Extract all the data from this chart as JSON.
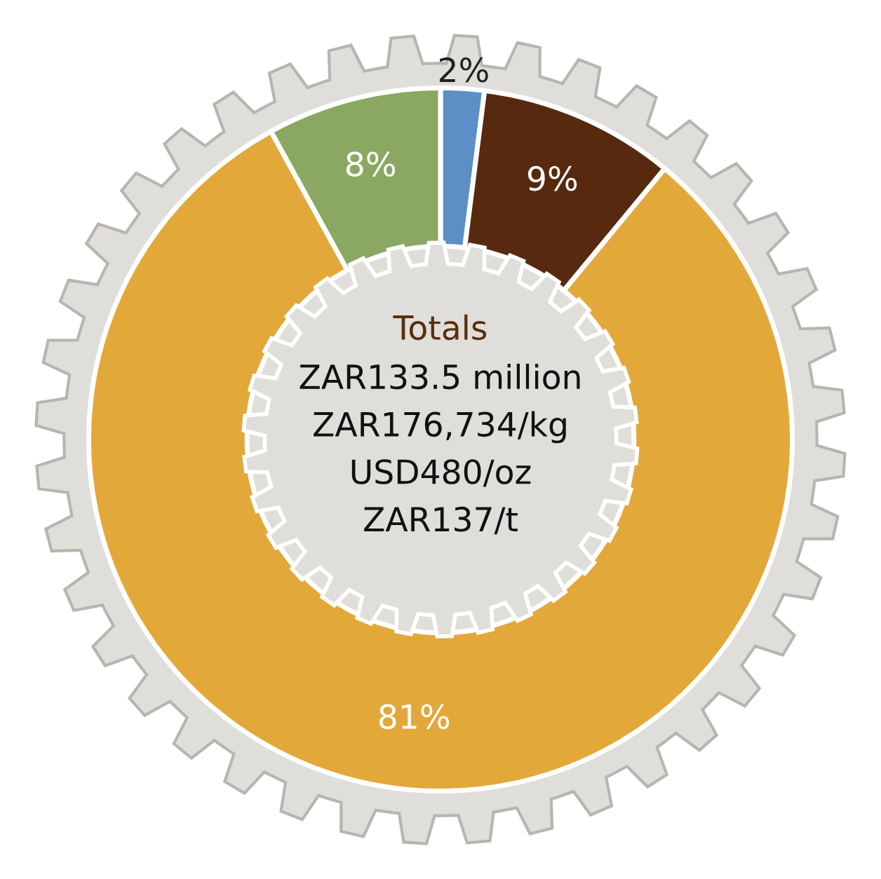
{
  "chart_data": {
    "type": "donut",
    "title": "Totals",
    "categories": [
      null,
      null,
      null,
      null
    ],
    "values": [
      2,
      9,
      81,
      8
    ],
    "colors": [
      "#5b8fc5",
      "#572a0f",
      "#e3a83a",
      "#8aa862"
    ],
    "value_labels": [
      "2%",
      "9%",
      "81%",
      "8%"
    ],
    "annotations": [
      "ZAR133.5 million",
      "ZAR176,734/kg",
      "USD480/oz",
      "ZAR137/t"
    ]
  }
}
